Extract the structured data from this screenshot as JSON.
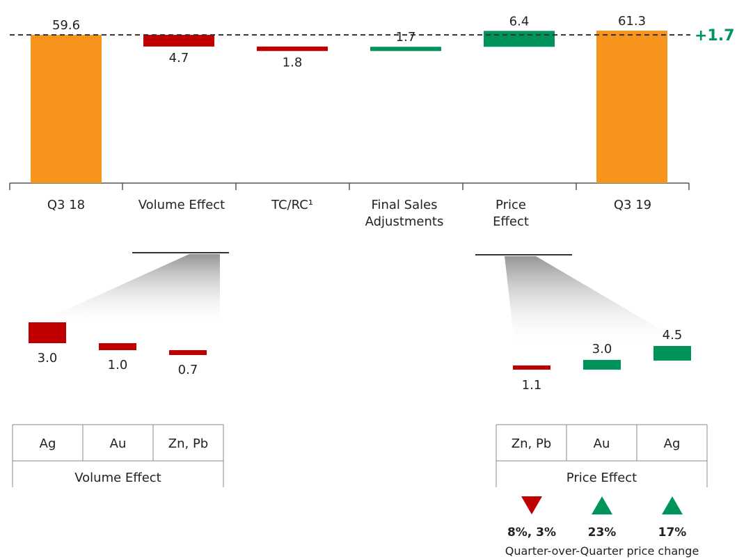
{
  "chart_data": [
    {
      "type": "waterfall",
      "categories": [
        "Q3 18",
        "Volume Effect",
        "TC/RC¹",
        "Final Sales Adjustments",
        "Price Effect",
        "Q3 19"
      ],
      "values": [
        59.6,
        -4.7,
        -1.8,
        1.7,
        6.4,
        61.3
      ],
      "value_labels": [
        "59.6",
        "4.7",
        "1.8",
        "1.7",
        "6.4",
        "61.3"
      ],
      "total_change_label": "+1.7",
      "colors": {
        "total": "#F7941D",
        "negative": "#C00000",
        "positive": "#00935A",
        "reference_line": "#333333"
      }
    },
    {
      "type": "bar",
      "title": "Volume Effect",
      "categories": [
        "Ag",
        "Au",
        "Zn, Pb"
      ],
      "values": [
        -3.0,
        -1.0,
        -0.7
      ],
      "value_labels": [
        "3.0",
        "1.0",
        "0.7"
      ],
      "colors": {
        "negative": "#C00000"
      }
    },
    {
      "type": "bar",
      "title": "Price Effect",
      "categories": [
        "Zn, Pb",
        "Au",
        "Ag"
      ],
      "values": [
        -1.1,
        3.0,
        4.5
      ],
      "value_labels": [
        "1.1",
        "3.0",
        "4.5"
      ],
      "price_change": {
        "directions": [
          "down",
          "up",
          "up"
        ],
        "labels": [
          "8%, 3%",
          "23%",
          "17%"
        ],
        "caption": "Quarter-over-Quarter price change"
      },
      "colors": {
        "negative": "#C00000",
        "positive": "#00935A"
      }
    }
  ]
}
